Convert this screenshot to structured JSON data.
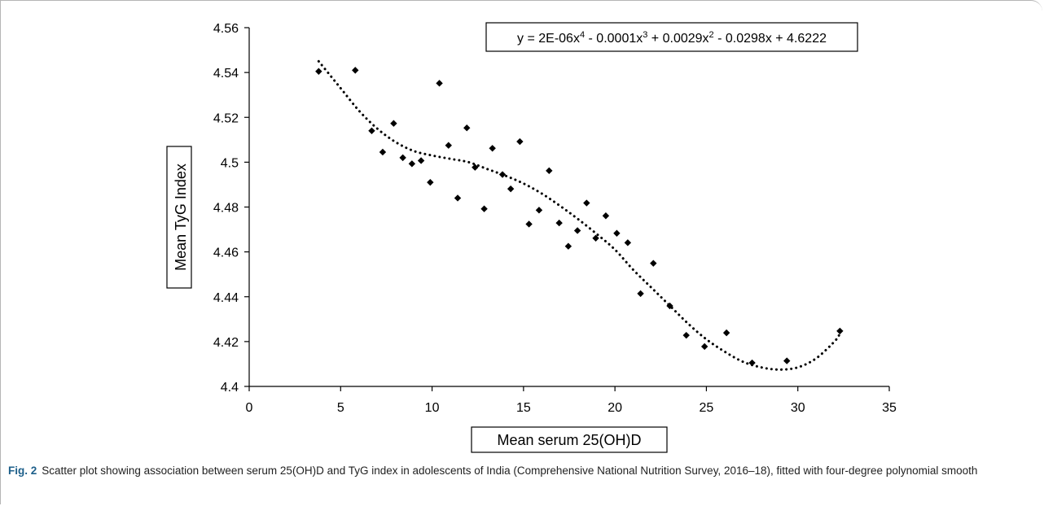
{
  "figure": {
    "label": "Fig. 2",
    "caption": "Scatter plot showing association between serum 25(OH)D and TyG index in adolescents of India (Comprehensive National Nutrition Survey, 2016–18), fitted with four-degree polynomial smooth"
  },
  "chart_data": {
    "type": "scatter",
    "title": "",
    "xlabel": "Mean serum 25(OH)D",
    "ylabel": "Mean TyG Index",
    "xlim": [
      0,
      35
    ],
    "ylim": [
      4.4,
      4.56
    ],
    "xticks": [
      0,
      5,
      10,
      15,
      20,
      25,
      30,
      35
    ],
    "yticks": [
      4.4,
      4.42,
      4.44,
      4.46,
      4.48,
      4.5,
      4.52,
      4.54,
      4.56
    ],
    "yticklabels": [
      "4.4",
      "4.42",
      "4.44",
      "4.46",
      "4.48",
      "4.5",
      "4.52",
      "4.54",
      "4.56"
    ],
    "grid": false,
    "marker": "diamond",
    "marker_color": "#000000",
    "points": [
      {
        "x": 3.8,
        "y": 4.5405
      },
      {
        "x": 5.8,
        "y": 4.541
      },
      {
        "x": 6.7,
        "y": 4.514
      },
      {
        "x": 7.3,
        "y": 4.5045
      },
      {
        "x": 7.9,
        "y": 4.5173
      },
      {
        "x": 8.4,
        "y": 4.502
      },
      {
        "x": 8.9,
        "y": 4.4993
      },
      {
        "x": 9.4,
        "y": 4.5007
      },
      {
        "x": 9.9,
        "y": 4.491
      },
      {
        "x": 10.4,
        "y": 4.5352
      },
      {
        "x": 10.9,
        "y": 4.5075
      },
      {
        "x": 11.4,
        "y": 4.484
      },
      {
        "x": 11.9,
        "y": 4.5153
      },
      {
        "x": 12.35,
        "y": 4.4977
      },
      {
        "x": 12.85,
        "y": 4.4792
      },
      {
        "x": 13.3,
        "y": 4.5062
      },
      {
        "x": 13.85,
        "y": 4.4945
      },
      {
        "x": 14.3,
        "y": 4.4881
      },
      {
        "x": 14.8,
        "y": 4.5092
      },
      {
        "x": 15.3,
        "y": 4.4724
      },
      {
        "x": 15.85,
        "y": 4.4786
      },
      {
        "x": 16.4,
        "y": 4.4962
      },
      {
        "x": 16.95,
        "y": 4.4729
      },
      {
        "x": 17.45,
        "y": 4.4625
      },
      {
        "x": 17.95,
        "y": 4.4695
      },
      {
        "x": 18.45,
        "y": 4.4818
      },
      {
        "x": 18.95,
        "y": 4.4661
      },
      {
        "x": 19.5,
        "y": 4.4761
      },
      {
        "x": 20.1,
        "y": 4.4683
      },
      {
        "x": 20.7,
        "y": 4.4641
      },
      {
        "x": 21.4,
        "y": 4.4414
      },
      {
        "x": 22.1,
        "y": 4.4549
      },
      {
        "x": 23.0,
        "y": 4.4359
      },
      {
        "x": 23.9,
        "y": 4.4228
      },
      {
        "x": 24.9,
        "y": 4.4178
      },
      {
        "x": 26.1,
        "y": 4.4239
      },
      {
        "x": 27.5,
        "y": 4.4105
      },
      {
        "x": 29.4,
        "y": 4.4114
      },
      {
        "x": 32.3,
        "y": 4.4247
      }
    ],
    "trendline": {
      "type": "polynomial",
      "degree": 4,
      "style": "dotted",
      "x_range": [
        3.8,
        32.3
      ],
      "coefficients_high_to_low": [
        2e-06,
        -0.0001,
        0.0029,
        -0.0298,
        4.6222
      ],
      "fitted_curve": [
        {
          "x": 3.8,
          "y": 4.545
        },
        {
          "x": 5,
          "y": 4.533
        },
        {
          "x": 6,
          "y": 4.523
        },
        {
          "x": 7,
          "y": 4.515
        },
        {
          "x": 8,
          "y": 4.509
        },
        {
          "x": 9,
          "y": 4.505
        },
        {
          "x": 10,
          "y": 4.503
        },
        {
          "x": 11,
          "y": 4.5015
        },
        {
          "x": 12,
          "y": 4.5
        },
        {
          "x": 13,
          "y": 4.497
        },
        {
          "x": 14,
          "y": 4.494
        },
        {
          "x": 15,
          "y": 4.4905
        },
        {
          "x": 16,
          "y": 4.486
        },
        {
          "x": 17,
          "y": 4.4805
        },
        {
          "x": 18,
          "y": 4.4745
        },
        {
          "x": 19,
          "y": 4.468
        },
        {
          "x": 20,
          "y": 4.461
        },
        {
          "x": 21,
          "y": 4.452
        },
        {
          "x": 22,
          "y": 4.444
        },
        {
          "x": 23,
          "y": 4.436
        },
        {
          "x": 24,
          "y": 4.428
        },
        {
          "x": 25,
          "y": 4.421
        },
        {
          "x": 26,
          "y": 4.4155
        },
        {
          "x": 27,
          "y": 4.411
        },
        {
          "x": 28,
          "y": 4.4085
        },
        {
          "x": 29,
          "y": 4.4075
        },
        {
          "x": 30,
          "y": 4.4085
        },
        {
          "x": 31,
          "y": 4.4125
        },
        {
          "x": 32,
          "y": 4.42
        },
        {
          "x": 32.3,
          "y": 4.4235
        }
      ]
    },
    "annotations": [
      {
        "parts": [
          {
            "t": "y = 2E-06x"
          },
          {
            "t": "4",
            "sup": true
          },
          {
            "t": " - 0.0001x"
          },
          {
            "t": "3",
            "sup": true
          },
          {
            "t": " + 0.0029x"
          },
          {
            "t": "2",
            "sup": true
          },
          {
            "t": " - 0.0298x + 4.6222"
          }
        ]
      }
    ]
  }
}
